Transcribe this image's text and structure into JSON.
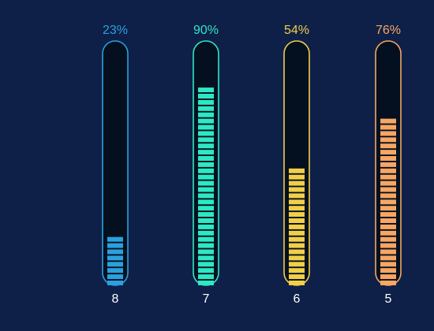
{
  "chart_data": {
    "type": "bar",
    "title": "",
    "xlabel": "",
    "ylabel": "",
    "ylim": [
      0,
      100
    ],
    "value_format": "percent",
    "grid": false,
    "legend": "none",
    "background": "#0f2048",
    "tube_fill": "#04101f",
    "categories": [
      "8",
      "7",
      "6",
      "5"
    ],
    "values": [
      23,
      90,
      54,
      76
    ],
    "value_labels": [
      "23%",
      "90%",
      "54%",
      "76%"
    ],
    "colors": [
      "#2ba0dd",
      "#2de8c4",
      "#f2cf49",
      "#f7a663"
    ],
    "category_label_color": "#ffffff"
  }
}
